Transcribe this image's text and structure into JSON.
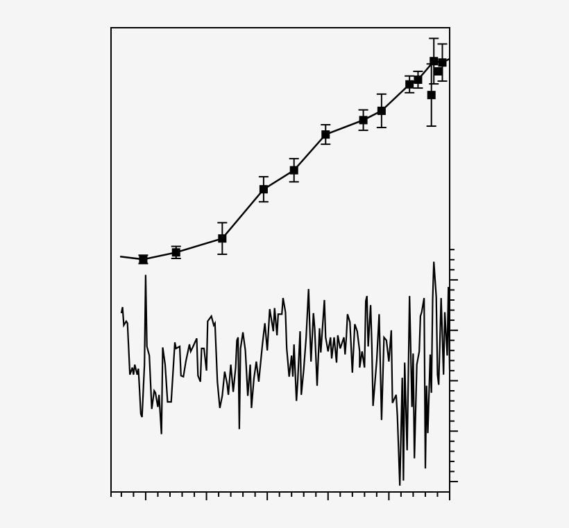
{
  "chart_data": [
    {
      "type": "line",
      "markers": "square",
      "error_bars": true,
      "title": "",
      "xlabel": "",
      "ylabel": "",
      "axis": "left",
      "ylim": [
        0,
        10
      ],
      "xlim": [
        2.15,
        30
      ],
      "grid": false,
      "line_start": {
        "x": 2.9,
        "y": 5.07
      },
      "line_end": {
        "x": 30.0,
        "y": 9.33
      },
      "points": [
        {
          "x": 4.8,
          "y": 5.01,
          "err": 0.09
        },
        {
          "x": 7.5,
          "y": 5.16,
          "err": 0.13
        },
        {
          "x": 11.3,
          "y": 5.46,
          "err": 0.34
        },
        {
          "x": 14.7,
          "y": 6.52,
          "err": 0.27
        },
        {
          "x": 17.2,
          "y": 6.93,
          "err": 0.25
        },
        {
          "x": 19.8,
          "y": 7.7,
          "err": 0.21
        },
        {
          "x": 22.9,
          "y": 8.01,
          "err": 0.22
        },
        {
          "x": 24.4,
          "y": 8.21,
          "err": 0.36
        },
        {
          "x": 26.7,
          "y": 8.78,
          "err": 0.18
        },
        {
          "x": 27.4,
          "y": 8.88,
          "err": 0.18
        },
        {
          "x": 28.5,
          "y": 8.55,
          "err": 0.67
        },
        {
          "x": 28.7,
          "y": 9.28,
          "err": 0.49
        },
        {
          "x": 29.0,
          "y": 9.06,
          "err": 0
        },
        {
          "x": 29.4,
          "y": 9.25,
          "err": 0.4
        }
      ]
    },
    {
      "type": "line",
      "title": "",
      "xlabel": "",
      "ylabel": "",
      "axis": "right",
      "ylim": [
        -1.03,
        45
      ],
      "xlim": [
        2.15,
        30
      ],
      "grid": false,
      "x_ticks_major": [
        5,
        10,
        15,
        20,
        25,
        30
      ],
      "x_ticks_minor_step": 1,
      "y_ticks_major": [
        0,
        5,
        10,
        15,
        20
      ],
      "y_ticks_range": [
        0,
        23
      ],
      "x": [
        3.0,
        3.1,
        3.2,
        3.4,
        3.5,
        3.7,
        3.9,
        4.0,
        4.1,
        4.3,
        4.4,
        4.5,
        4.6,
        4.7,
        4.9,
        5.0,
        5.1,
        5.3,
        5.5,
        5.7,
        5.8,
        6.0,
        6.1,
        6.3,
        6.4,
        6.6,
        6.8,
        7.1,
        7.4,
        7.5,
        7.8,
        7.9,
        8.1,
        8.3,
        8.6,
        8.7,
        8.9,
        9.2,
        9.3,
        9.5,
        9.6,
        9.8,
        10.0,
        10.1,
        10.4,
        10.6,
        10.7,
        10.9,
        11.1,
        11.3,
        11.5,
        11.7,
        11.8,
        12.0,
        12.2,
        12.4,
        12.5,
        12.6,
        12.7,
        12.8,
        13.0,
        13.2,
        13.4,
        13.6,
        13.7,
        13.9,
        14.1,
        14.3,
        14.6,
        14.8,
        15.0,
        15.2,
        15.5,
        15.6,
        15.8,
        15.9,
        16.2,
        16.3,
        16.5,
        16.6,
        16.8,
        17.0,
        17.1,
        17.2,
        17.4,
        17.5,
        17.7,
        17.8,
        18.0,
        18.2,
        18.4,
        18.5,
        18.6,
        18.8,
        18.9,
        19.1,
        19.3,
        19.4,
        19.7,
        19.8,
        20.0,
        20.2,
        20.3,
        20.5,
        20.7,
        20.8,
        21.0,
        21.3,
        21.4,
        21.5,
        21.6,
        21.8,
        22.0,
        22.2,
        22.4,
        22.6,
        22.6,
        22.8,
        23.0,
        23.1,
        23.2,
        23.3,
        23.5,
        23.6,
        23.7,
        24.0,
        24.2,
        24.4,
        24.6,
        24.8,
        25.0,
        25.2,
        25.3,
        25.6,
        25.7,
        25.9,
        26.1,
        26.2,
        26.3,
        26.5,
        26.6,
        26.7,
        26.9,
        27.0,
        27.1,
        27.3,
        27.5,
        27.6,
        27.7,
        27.9,
        28.0,
        28.1,
        28.2,
        28.4,
        28.5,
        28.6,
        28.7,
        28.9,
        29.0,
        29.1,
        29.3,
        29.5,
        29.6,
        29.8,
        29.9,
        30.0
      ],
      "y": [
        16.7,
        17.3,
        15.5,
        15.9,
        15.7,
        10.6,
        11.3,
        10.6,
        11.6,
        10.6,
        11.2,
        9.0,
        6.7,
        6.4,
        11.6,
        20.5,
        13.4,
        12.5,
        7.2,
        9.0,
        8.8,
        7.4,
        8.6,
        4.7,
        13.3,
        11.6,
        7.9,
        7.9,
        13.8,
        13.2,
        13.4,
        10.5,
        10.4,
        11.9,
        13.6,
        12.9,
        13.4,
        14.2,
        10.5,
        9.9,
        13.2,
        13.2,
        11.0,
        15.9,
        16.4,
        15.5,
        15.7,
        9.9,
        7.3,
        8.5,
        10.9,
        9.7,
        8.6,
        11.6,
        8.9,
        11.3,
        14.0,
        14.3,
        5.2,
        13.2,
        14.8,
        13.0,
        8.5,
        11.6,
        7.3,
        10.2,
        11.9,
        9.9,
        13.6,
        15.7,
        13.0,
        17.1,
        14.9,
        17.2,
        14.5,
        16.6,
        16.6,
        18.2,
        16.8,
        13.2,
        10.4,
        12.5,
        10.4,
        13.6,
        8.0,
        9.9,
        14.9,
        8.6,
        11.1,
        14.3,
        19.1,
        15.2,
        11.9,
        16.7,
        15.2,
        9.5,
        15.2,
        12.8,
        18.0,
        14.3,
        12.9,
        14.3,
        12.2,
        14.3,
        11.8,
        14.5,
        13.2,
        14.3,
        12.6,
        14.3,
        16.6,
        15.8,
        10.8,
        15.6,
        14.9,
        12.9,
        11.3,
        12.9,
        11.3,
        17.9,
        18.4,
        13.4,
        17.5,
        13.4,
        7.5,
        12.0,
        16.6,
        6.1,
        14.3,
        14.0,
        11.9,
        15.0,
        7.8,
        8.6,
        6.5,
        -0.4,
        10.3,
        0.1,
        11.8,
        3.1,
        10.3,
        18.4,
        7.4,
        12.7,
        2.3,
        11.6,
        12.9,
        16.4,
        16.8,
        18.2,
        1.3,
        9.5,
        4.8,
        12.6,
        8.8,
        18.0,
        21.8,
        18.3,
        10.6,
        9.6,
        18.2,
        10.6,
        16.8,
        12.5,
        19.3,
        11.1
      ]
    }
  ]
}
